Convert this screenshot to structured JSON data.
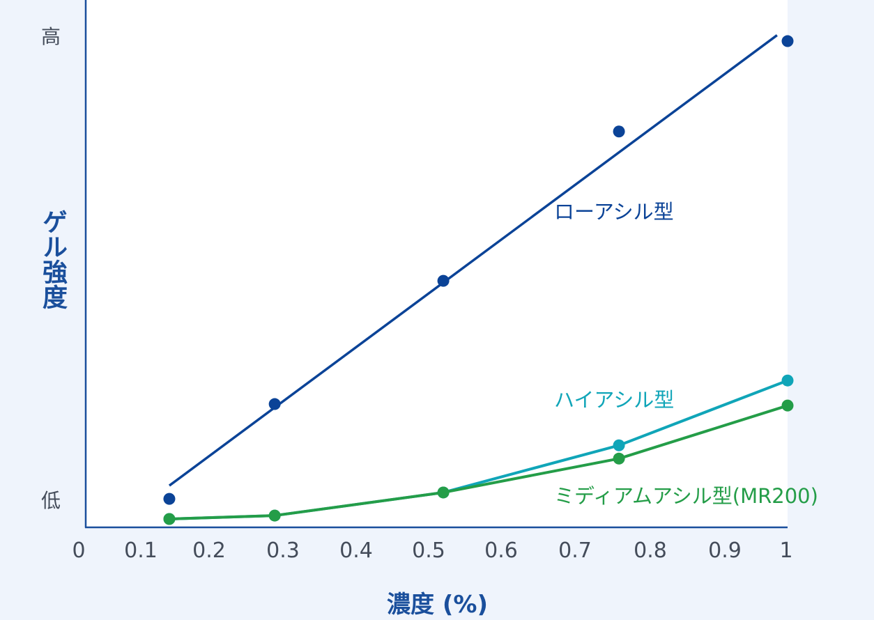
{
  "chart_data": {
    "type": "line",
    "title": "",
    "xlabel": "濃度 (%)",
    "ylabel": "ゲル強度",
    "xlim": [
      0,
      1
    ],
    "ylim": [
      0,
      100
    ],
    "x_ticks": [
      "0",
      "0.1",
      "0.2",
      "0.3",
      "0.4",
      "0.5",
      "0.6",
      "0.7",
      "0.8",
      "0.9",
      "1"
    ],
    "y_tick_labels": {
      "high": "高",
      "low": "低"
    },
    "y_scale_note": "relative (0 = axis baseline, 100 = 高)",
    "grid": false,
    "legend_position": "inline labels",
    "x": [
      0.12,
      0.27,
      0.51,
      0.76,
      1.0
    ],
    "series": [
      {
        "name": "ローアシル型",
        "color": "#0b4397",
        "style": "markers + linear fit line",
        "values": [
          5.8,
          25.1,
          50.2,
          80.6,
          99.0
        ],
        "fit_line": {
          "x": [
            0.12,
            0.985
          ],
          "y": [
            8.5,
            100.2
          ]
        }
      },
      {
        "name": "ハイアシル型",
        "color": "#10a5b8",
        "style": "markers + connected line",
        "values": [
          1.7,
          2.4,
          7.1,
          16.7,
          29.9
        ]
      },
      {
        "name": "ミディアムアシル型(MR200)",
        "color": "#249d48",
        "style": "markers + connected line",
        "values": [
          1.7,
          2.4,
          7.1,
          14.0,
          24.8
        ]
      }
    ],
    "labels": [
      {
        "text": "ローアシル型",
        "series": 0
      },
      {
        "text": "ハイアシル型",
        "series": 1
      },
      {
        "text": "ミディアムアシル型(MR200)",
        "series": 2
      }
    ]
  },
  "axis": {
    "y_title": "ゲル強度",
    "x_title": "濃度 (%)"
  },
  "colors": {
    "background": "#eff4fc",
    "plot_background": "#ffffff",
    "axis": "#1a4f9c",
    "tick_text": "#444c5a"
  }
}
